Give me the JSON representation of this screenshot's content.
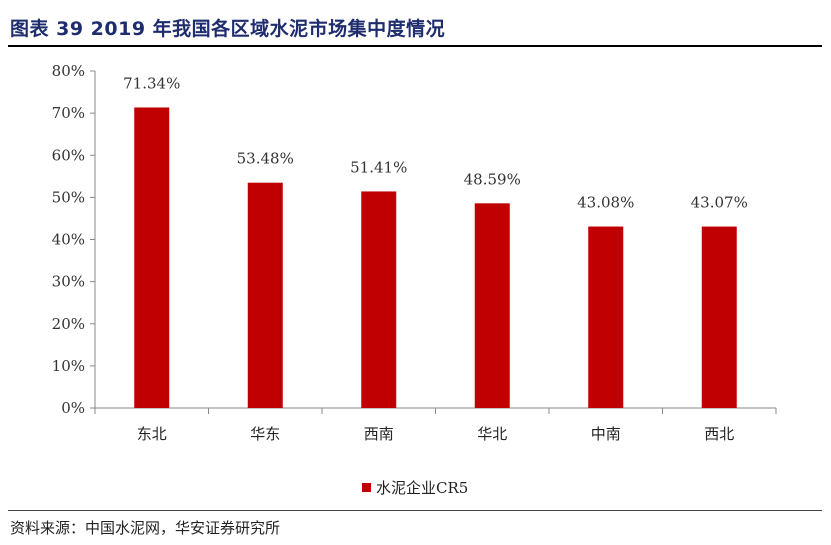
{
  "figure": {
    "title": "图表 39 2019 年我国各区域水泥市场集中度情况",
    "source": "资料来源：中国水泥网，华安证券研究所"
  },
  "colors": {
    "bar": "#c00000",
    "axis": "#888888"
  },
  "chart_data": {
    "type": "bar",
    "categories": [
      "东北",
      "华东",
      "西南",
      "华北",
      "中南",
      "西北"
    ],
    "series": [
      {
        "name": "水泥企业CR5",
        "values": [
          71.34,
          53.48,
          51.41,
          48.59,
          43.08,
          43.07
        ]
      }
    ],
    "data_labels": [
      "71.34%",
      "53.48%",
      "51.41%",
      "48.59%",
      "43.08%",
      "43.07%"
    ],
    "y_ticks": [
      "0%",
      "10%",
      "20%",
      "30%",
      "40%",
      "50%",
      "60%",
      "70%",
      "80%"
    ],
    "ylim": [
      0,
      80
    ],
    "grid": false,
    "legend_position": "bottom"
  }
}
